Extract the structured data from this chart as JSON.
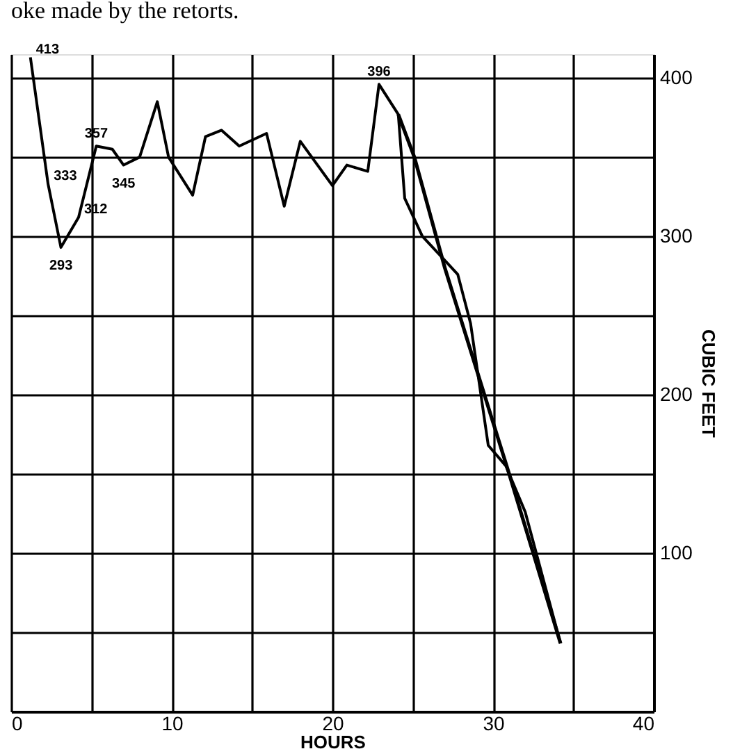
{
  "chart_data": {
    "type": "line",
    "xlabel": "HOURS",
    "ylabel": "CUBIC FEET",
    "xlim": [
      0,
      40
    ],
    "ylim": [
      0,
      415
    ],
    "xticks": [
      0,
      {
        "value": 5,
        "label": null
      },
      10,
      {
        "value": 15,
        "label": null
      },
      20,
      {
        "value": 25,
        "label": null
      },
      30,
      {
        "value": 35,
        "label": null
      },
      40
    ],
    "yticks": [
      {
        "value": 50,
        "label": null
      },
      100,
      {
        "value": 150,
        "label": null
      },
      200,
      {
        "value": 250,
        "label": null
      },
      300,
      {
        "value": 350,
        "label": null
      },
      400
    ],
    "grid": true,
    "series": [
      {
        "color": "#000000",
        "x": [
          1.2,
          2.3,
          3.1,
          4.2,
          5.3,
          6.3,
          7.0,
          8.0,
          9.1,
          9.8,
          11.3,
          12.1,
          13.1,
          14.2,
          15.9,
          17.0,
          18.0,
          20.0,
          20.9,
          22.2,
          22.9,
          24.1,
          24.5,
          25.6,
          26.8,
          27.8,
          28.6,
          29.7,
          30.8,
          32.0,
          34.2
        ],
        "values": [
          413,
          333,
          293,
          312,
          357,
          355,
          345,
          350,
          385,
          350,
          326,
          363,
          367,
          357,
          365,
          319,
          360,
          332,
          345,
          341,
          396,
          377,
          324,
          300,
          287,
          276,
          245,
          168,
          155,
          126,
          43
        ]
      },
      {
        "color": "#000000",
        "x": [
          24.1,
          25.1,
          27.0,
          29.0,
          31.0,
          32.5,
          34.2
        ],
        "values": [
          377,
          350,
          280,
          215,
          150,
          100,
          43
        ]
      }
    ],
    "annotations": [
      "oke made by the retorts.",
      {
        "text": "413",
        "x": 1.2,
        "y": 413
      },
      {
        "text": "333",
        "x": 2.3,
        "y": 333
      },
      {
        "text": "293",
        "x": 3.1,
        "y": 293
      },
      {
        "text": "312",
        "x": 4.2,
        "y": 312
      },
      {
        "text": "357",
        "x": 5.3,
        "y": 357
      },
      {
        "text": "345",
        "x": 7.0,
        "y": 345
      },
      {
        "text": "396",
        "x": 22.9,
        "y": 396
      }
    ]
  }
}
